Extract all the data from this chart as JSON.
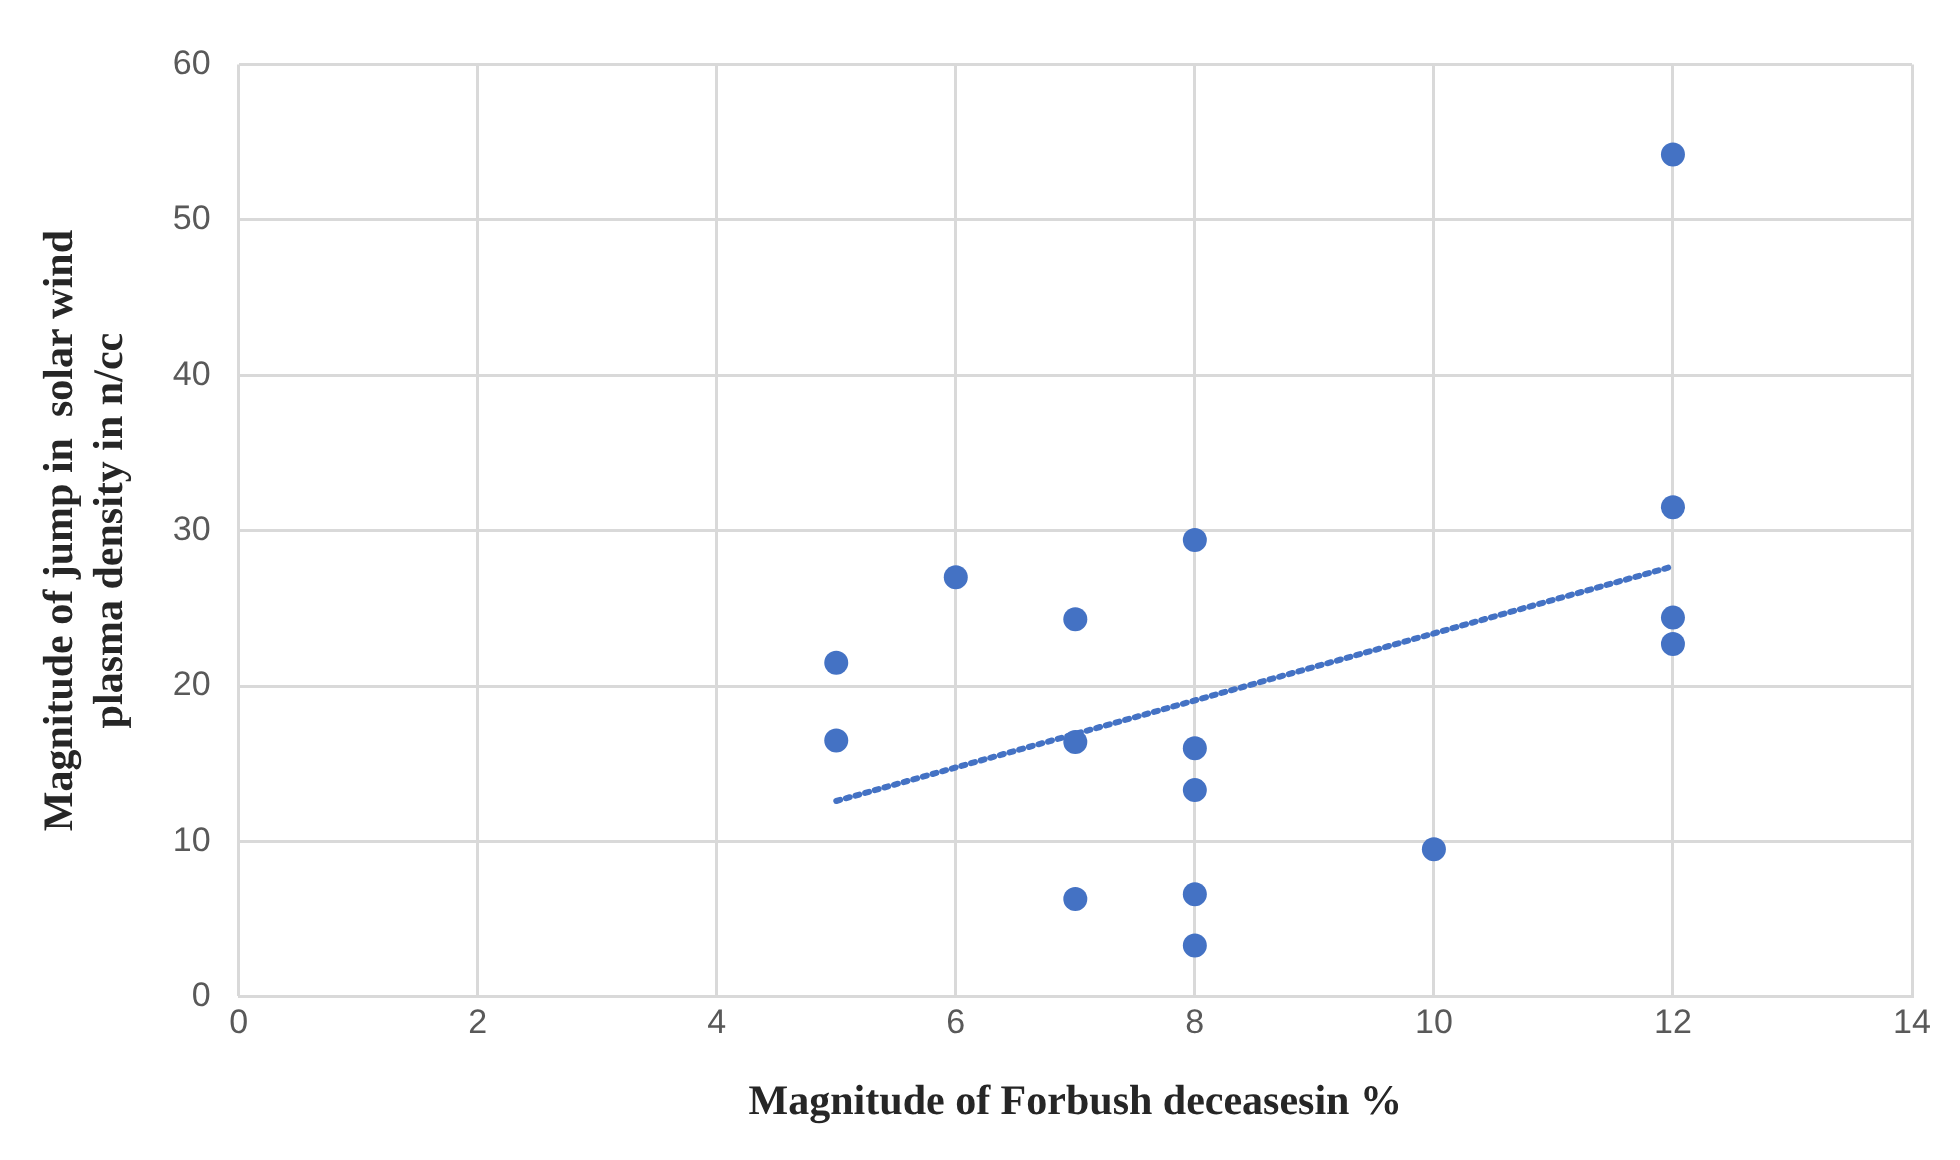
{
  "chart_data": {
    "type": "scatter",
    "xlabel": "Magnitude of Forbush deceasesin %",
    "ylabel": "Magnitude of jump in  solar wind plasma density in n/cc",
    "xlim": [
      0,
      14
    ],
    "xticks": [
      0,
      2,
      4,
      6,
      8,
      10,
      12,
      14
    ],
    "ylim": [
      0,
      60
    ],
    "yticks": [
      0,
      10,
      20,
      30,
      40,
      50,
      60
    ],
    "grid": true,
    "legend": false,
    "marker": "circle",
    "series": [
      {
        "color": "#4472c4",
        "x": [
          5,
          5,
          6,
          7,
          7,
          7,
          8,
          8,
          8,
          8,
          8,
          10,
          12,
          12,
          12,
          12
        ],
        "values": [
          21.5,
          16.5,
          27,
          24.3,
          16.4,
          6.3,
          29.4,
          16,
          13.3,
          6.6,
          3.3,
          9.5,
          54.2,
          31.5,
          24.4,
          22.7
        ]
      },
      {
        "type": "line",
        "color": "#4472c4",
        "line_style": "dotted",
        "marker": "none",
        "x": [
          5,
          12
        ],
        "values": [
          12.6,
          27.7
        ]
      }
    ]
  }
}
